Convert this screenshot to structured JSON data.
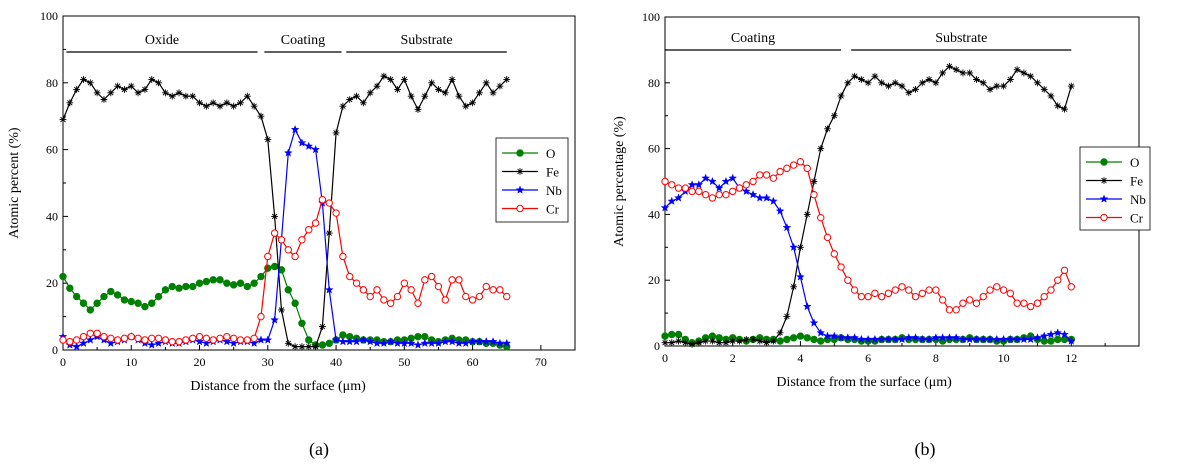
{
  "chart_data": [
    {
      "type": "line",
      "panel_label": "(a)",
      "xlabel": "Distance from the surface (μm)",
      "ylabel": "Atomic percent (%)",
      "xlim": [
        0,
        75
      ],
      "ylim": [
        0,
        100
      ],
      "xticks": [
        0,
        10,
        20,
        30,
        40,
        50,
        60,
        70
      ],
      "yticks": [
        0,
        20,
        40,
        60,
        80,
        100
      ],
      "legend_position": "right",
      "grid": false,
      "regions": [
        {
          "label": "Oxide",
          "from": 0.5,
          "to": 28.5
        },
        {
          "label": "Coating",
          "from": 29.5,
          "to": 40.8
        },
        {
          "label": "Substrate",
          "from": 41.5,
          "to": 65
        }
      ],
      "series": [
        {
          "name": "O",
          "color": "#008000",
          "marker": "dot",
          "x": [
            0,
            1,
            2,
            3,
            4,
            5,
            6,
            7,
            8,
            9,
            10,
            11,
            12,
            13,
            14,
            15,
            16,
            17,
            18,
            19,
            20,
            21,
            22,
            23,
            24,
            25,
            26,
            27,
            28,
            29,
            30,
            31,
            32,
            33,
            34,
            35,
            36,
            37,
            38,
            39,
            40,
            41,
            42,
            43,
            44,
            45,
            46,
            47,
            48,
            49,
            50,
            51,
            52,
            53,
            54,
            55,
            56,
            57,
            58,
            59,
            60,
            61,
            62,
            63,
            64,
            65
          ],
          "y": [
            22,
            18.5,
            16,
            14,
            12,
            14,
            16,
            17.5,
            16.5,
            15,
            14.5,
            14,
            13,
            14,
            16,
            18,
            19,
            18.5,
            19,
            19,
            20,
            20.5,
            21,
            21,
            20,
            19.5,
            20,
            19,
            20,
            22,
            24.5,
            25,
            24,
            18,
            14,
            8,
            3,
            1.5,
            1.5,
            2,
            3,
            4.5,
            4,
            3.5,
            3,
            3,
            3,
            2.5,
            2.5,
            3,
            3,
            3.5,
            4,
            4,
            3,
            2.5,
            3,
            3.5,
            3,
            3,
            2.5,
            2.5,
            2,
            2,
            1.5,
            1
          ]
        },
        {
          "name": "Fe",
          "color": "#000000",
          "marker": "asterisk",
          "x": [
            0,
            1,
            2,
            3,
            4,
            5,
            6,
            7,
            8,
            9,
            10,
            11,
            12,
            13,
            14,
            15,
            16,
            17,
            18,
            19,
            20,
            21,
            22,
            23,
            24,
            25,
            26,
            27,
            28,
            29,
            30,
            31,
            32,
            33,
            34,
            35,
            36,
            37,
            38,
            39,
            40,
            41,
            42,
            43,
            44,
            45,
            46,
            47,
            48,
            49,
            50,
            51,
            52,
            53,
            54,
            55,
            56,
            57,
            58,
            59,
            60,
            61,
            62,
            63,
            64,
            65
          ],
          "y": [
            69,
            74,
            78,
            81,
            80,
            77,
            75,
            77,
            79,
            78,
            79,
            77,
            78,
            81,
            80,
            77,
            76,
            77,
            76,
            76,
            74,
            73,
            74,
            73,
            74,
            73,
            74,
            76,
            73,
            70,
            63,
            40,
            12,
            2,
            1,
            1,
            1,
            1,
            7,
            35,
            65,
            73,
            75,
            76,
            74,
            77,
            79,
            82,
            81,
            78,
            81,
            76,
            72,
            76,
            80,
            78,
            77,
            81,
            76,
            73,
            74,
            77,
            80,
            77,
            79,
            81
          ]
        },
        {
          "name": "Nb",
          "color": "#0000ff",
          "marker": "star",
          "x": [
            0,
            1,
            2,
            3,
            4,
            5,
            6,
            7,
            8,
            9,
            10,
            11,
            12,
            13,
            14,
            15,
            16,
            17,
            18,
            19,
            20,
            21,
            22,
            23,
            24,
            25,
            26,
            27,
            28,
            29,
            30,
            31,
            32,
            33,
            34,
            35,
            36,
            37,
            38,
            39,
            40,
            41,
            42,
            43,
            44,
            45,
            46,
            47,
            48,
            49,
            50,
            51,
            52,
            53,
            54,
            55,
            56,
            57,
            58,
            59,
            60,
            61,
            62,
            63,
            64,
            65
          ],
          "y": [
            4,
            1.5,
            1,
            2,
            3,
            4,
            3,
            2,
            2.5,
            3,
            4,
            3,
            2,
            1.5,
            2,
            2.5,
            2,
            2,
            2.5,
            3,
            2.5,
            2,
            2.5,
            3,
            2.5,
            2,
            2.5,
            2.5,
            2,
            3,
            3,
            9,
            33,
            59,
            66,
            62,
            61,
            60,
            44,
            18,
            3,
            2.5,
            2.5,
            2.5,
            3,
            2.5,
            2,
            2,
            2.5,
            2,
            2,
            2,
            1.5,
            2,
            2,
            2,
            2.5,
            2.5,
            2,
            2,
            2.5,
            2.5,
            2.5,
            2.5,
            2,
            2
          ]
        },
        {
          "name": "Cr",
          "color": "#ff0000",
          "marker": "circle",
          "x": [
            0,
            1,
            2,
            3,
            4,
            5,
            6,
            7,
            8,
            9,
            10,
            11,
            12,
            13,
            14,
            15,
            16,
            17,
            18,
            19,
            20,
            21,
            22,
            23,
            24,
            25,
            26,
            27,
            28,
            29,
            30,
            31,
            32,
            33,
            34,
            35,
            36,
            37,
            38,
            39,
            40,
            41,
            42,
            43,
            44,
            45,
            46,
            47,
            48,
            49,
            50,
            51,
            52,
            53,
            54,
            55,
            56,
            57,
            58,
            59,
            60,
            61,
            62,
            63,
            64,
            65
          ],
          "y": [
            3,
            2.5,
            3,
            4,
            5,
            5,
            4,
            3.5,
            3,
            3.5,
            4,
            3.5,
            3,
            3.5,
            3.5,
            3,
            2.5,
            2.5,
            3,
            3.5,
            4,
            3.5,
            3,
            3.5,
            4,
            3.5,
            3,
            3,
            3.5,
            10,
            28,
            35,
            33,
            30,
            28,
            33,
            36,
            38,
            45,
            44,
            41,
            28,
            22,
            20,
            18,
            16,
            18,
            15,
            14,
            16,
            20,
            18,
            14,
            21,
            22,
            19,
            15,
            21,
            21,
            16,
            15,
            16,
            19,
            18,
            18,
            16
          ]
        }
      ]
    },
    {
      "type": "line",
      "panel_label": "(b)",
      "xlabel": "Distance from the surface (μm)",
      "ylabel": "Atomic percentage (%)",
      "xlim": [
        0,
        14
      ],
      "ylim": [
        0,
        100
      ],
      "xticks": [
        0,
        2,
        4,
        6,
        8,
        10,
        12
      ],
      "yticks": [
        0,
        20,
        40,
        60,
        80,
        100
      ],
      "legend_position": "right",
      "grid": false,
      "regions": [
        {
          "label": "Coating",
          "from": 0,
          "to": 5.2
        },
        {
          "label": "Substrate",
          "from": 5.5,
          "to": 12
        }
      ],
      "series": [
        {
          "name": "O",
          "color": "#008000",
          "marker": "dot",
          "x": [
            0,
            0.2,
            0.4,
            0.6,
            0.8,
            1.0,
            1.2,
            1.4,
            1.6,
            1.8,
            2.0,
            2.2,
            2.4,
            2.6,
            2.8,
            3.0,
            3.2,
            3.4,
            3.6,
            3.8,
            4.0,
            4.2,
            4.4,
            4.6,
            4.8,
            5.0,
            5.2,
            5.4,
            5.6,
            5.8,
            6.0,
            6.2,
            6.4,
            6.6,
            6.8,
            7.0,
            7.2,
            7.4,
            7.6,
            7.8,
            8.0,
            8.2,
            8.4,
            8.6,
            8.8,
            9.0,
            9.2,
            9.4,
            9.6,
            9.8,
            10.0,
            10.2,
            10.4,
            10.6,
            10.8,
            11.0,
            11.2,
            11.4,
            11.6,
            11.8,
            12.0
          ],
          "y": [
            3,
            3.5,
            3.5,
            2,
            1,
            1.5,
            2.5,
            3,
            2.5,
            2,
            2.5,
            2,
            1.5,
            2,
            2.5,
            2,
            2,
            1.5,
            2,
            2.5,
            3,
            2.5,
            2,
            1.5,
            2,
            2,
            2.5,
            2,
            2,
            1.5,
            1.5,
            1.5,
            2,
            2,
            2,
            2.5,
            2,
            2,
            2,
            2,
            2,
            1.5,
            2,
            2,
            2,
            2.5,
            2,
            2,
            2,
            1.5,
            1.5,
            2,
            2,
            2.5,
            3,
            2,
            1.5,
            1.5,
            2,
            2,
            2
          ]
        },
        {
          "name": "Fe",
          "color": "#000000",
          "marker": "asterisk",
          "x": [
            0,
            0.2,
            0.4,
            0.6,
            0.8,
            1.0,
            1.2,
            1.4,
            1.6,
            1.8,
            2.0,
            2.2,
            2.4,
            2.6,
            2.8,
            3.0,
            3.2,
            3.4,
            3.6,
            3.8,
            4.0,
            4.2,
            4.4,
            4.6,
            4.8,
            5.0,
            5.2,
            5.4,
            5.6,
            5.8,
            6.0,
            6.2,
            6.4,
            6.6,
            6.8,
            7.0,
            7.2,
            7.4,
            7.6,
            7.8,
            8.0,
            8.2,
            8.4,
            8.6,
            8.8,
            9.0,
            9.2,
            9.4,
            9.6,
            9.8,
            10.0,
            10.2,
            10.4,
            10.6,
            10.8,
            11.0,
            11.2,
            11.4,
            11.6,
            11.8,
            12.0
          ],
          "y": [
            1,
            1,
            1.5,
            1,
            0.5,
            1,
            1.5,
            1.5,
            1,
            1,
            1.5,
            1.5,
            2,
            2,
            1.5,
            1,
            1.5,
            4,
            9,
            18,
            30,
            40,
            50,
            60,
            66,
            70,
            76,
            80,
            82,
            81,
            80,
            82,
            80,
            79,
            80,
            79,
            77,
            78,
            80,
            81,
            80,
            83,
            85,
            84,
            83,
            83,
            81,
            80,
            78,
            79,
            79,
            81,
            84,
            83,
            82,
            80,
            78,
            76,
            73,
            72,
            79
          ]
        },
        {
          "name": "Nb",
          "color": "#0000ff",
          "marker": "star",
          "x": [
            0,
            0.2,
            0.4,
            0.6,
            0.8,
            1.0,
            1.2,
            1.4,
            1.6,
            1.8,
            2.0,
            2.2,
            2.4,
            2.6,
            2.8,
            3.0,
            3.2,
            3.4,
            3.6,
            3.8,
            4.0,
            4.2,
            4.4,
            4.6,
            4.8,
            5.0,
            5.2,
            5.4,
            5.6,
            5.8,
            6.0,
            6.2,
            6.4,
            6.6,
            6.8,
            7.0,
            7.2,
            7.4,
            7.6,
            7.8,
            8.0,
            8.2,
            8.4,
            8.6,
            8.8,
            9.0,
            9.2,
            9.4,
            9.6,
            9.8,
            10.0,
            10.2,
            10.4,
            10.6,
            10.8,
            11.0,
            11.2,
            11.4,
            11.6,
            11.8,
            12.0
          ],
          "y": [
            42,
            44,
            45,
            47,
            49,
            49,
            51,
            50,
            48,
            50,
            51,
            48,
            47,
            46,
            45,
            45,
            44,
            41,
            36,
            30,
            21,
            12,
            7,
            4,
            3,
            3,
            2.5,
            2.5,
            2.5,
            2,
            2,
            2,
            2,
            2,
            2,
            2,
            2.5,
            2.5,
            2,
            2,
            2.5,
            2.5,
            2.5,
            2.5,
            2,
            2,
            2,
            2,
            2,
            2,
            2,
            2,
            2,
            2,
            2,
            2.5,
            3,
            3.5,
            4,
            3.5,
            1.5
          ]
        },
        {
          "name": "Cr",
          "color": "#ff0000",
          "marker": "circle",
          "x": [
            0,
            0.2,
            0.4,
            0.6,
            0.8,
            1.0,
            1.2,
            1.4,
            1.6,
            1.8,
            2.0,
            2.2,
            2.4,
            2.6,
            2.8,
            3.0,
            3.2,
            3.4,
            3.6,
            3.8,
            4.0,
            4.2,
            4.4,
            4.6,
            4.8,
            5.0,
            5.2,
            5.4,
            5.6,
            5.8,
            6.0,
            6.2,
            6.4,
            6.6,
            6.8,
            7.0,
            7.2,
            7.4,
            7.6,
            7.8,
            8.0,
            8.2,
            8.4,
            8.6,
            8.8,
            9.0,
            9.2,
            9.4,
            9.6,
            9.8,
            10.0,
            10.2,
            10.4,
            10.6,
            10.8,
            11.0,
            11.2,
            11.4,
            11.6,
            11.8,
            12.0
          ],
          "y": [
            50,
            49,
            48,
            48,
            47,
            47,
            46,
            45,
            46,
            46,
            47,
            48,
            49,
            50,
            52,
            52,
            51,
            53,
            54,
            55,
            56,
            54,
            46,
            39,
            33,
            28,
            24,
            20,
            17,
            15,
            15,
            16,
            15,
            16,
            17,
            18,
            17,
            15,
            16,
            17,
            17,
            14,
            11,
            11,
            13,
            14,
            13,
            15,
            17,
            18,
            17,
            16,
            13,
            13,
            12,
            13,
            15,
            17,
            20,
            23,
            18
          ]
        }
      ]
    }
  ]
}
